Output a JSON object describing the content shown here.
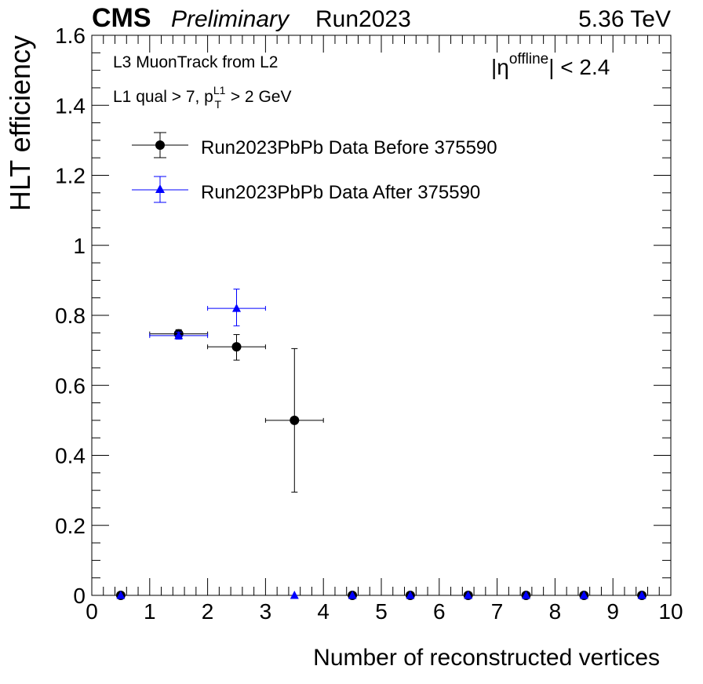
{
  "header": {
    "experiment": "CMS",
    "status": "Preliminary",
    "run": "Run2023",
    "energy": "5.36 TeV"
  },
  "annotations": {
    "line1": "L3 MuonTrack from L2",
    "line2_prefix": "L1 qual > 7, p",
    "line2_sup": "L1",
    "line2_sub": "T",
    "line2_suffix": " > 2 GeV",
    "eta_bar_left": "|",
    "eta_symbol": "η",
    "eta_sup": "offline",
    "eta_suffix": "| < 2.4"
  },
  "chart_data": {
    "type": "scatter",
    "title": "",
    "xlabel": "Number of reconstructed vertices",
    "ylabel": "HLT efficiency",
    "xlim": [
      0,
      10
    ],
    "ylim": [
      0,
      1.6
    ],
    "xticks": [
      "0",
      "1",
      "2",
      "3",
      "4",
      "5",
      "6",
      "7",
      "8",
      "9",
      "10"
    ],
    "yticks": [
      "0",
      "0.2",
      "0.4",
      "0.6",
      "0.8",
      "1",
      "1.2",
      "1.4",
      "1.6"
    ],
    "grid": false,
    "legend_position": "top-left",
    "series": [
      {
        "name": "Run2023PbPb Data Before 375590",
        "marker": "circle",
        "color": "#000000",
        "points": [
          {
            "x": 0.5,
            "xerr": 0.0,
            "y": 0.0,
            "yerr_low": 0.0,
            "yerr_high": 0.0
          },
          {
            "x": 1.5,
            "xerr": 0.5,
            "y": 0.747,
            "yerr_low": 0.012,
            "yerr_high": 0.012
          },
          {
            "x": 2.5,
            "xerr": 0.5,
            "y": 0.71,
            "yerr_low": 0.038,
            "yerr_high": 0.035
          },
          {
            "x": 3.5,
            "xerr": 0.5,
            "y": 0.5,
            "yerr_low": 0.205,
            "yerr_high": 0.205
          },
          {
            "x": 4.5,
            "xerr": 0.0,
            "y": 0.0,
            "yerr_low": 0.0,
            "yerr_high": 0.0
          },
          {
            "x": 5.5,
            "xerr": 0.0,
            "y": 0.0,
            "yerr_low": 0.0,
            "yerr_high": 0.0
          },
          {
            "x": 6.5,
            "xerr": 0.0,
            "y": 0.0,
            "yerr_low": 0.0,
            "yerr_high": 0.0
          },
          {
            "x": 7.5,
            "xerr": 0.0,
            "y": 0.0,
            "yerr_low": 0.0,
            "yerr_high": 0.0
          },
          {
            "x": 8.5,
            "xerr": 0.0,
            "y": 0.0,
            "yerr_low": 0.0,
            "yerr_high": 0.0
          },
          {
            "x": 9.5,
            "xerr": 0.0,
            "y": 0.0,
            "yerr_low": 0.0,
            "yerr_high": 0.0
          }
        ]
      },
      {
        "name": "Run2023PbPb Data After 375590",
        "marker": "triangle",
        "color": "#0000ff",
        "points": [
          {
            "x": 0.5,
            "xerr": 0.0,
            "y": 0.0,
            "yerr_low": 0.0,
            "yerr_high": 0.0
          },
          {
            "x": 1.5,
            "xerr": 0.5,
            "y": 0.742,
            "yerr_low": 0.01,
            "yerr_high": 0.01
          },
          {
            "x": 2.5,
            "xerr": 0.5,
            "y": 0.82,
            "yerr_low": 0.05,
            "yerr_high": 0.055
          },
          {
            "x": 3.5,
            "xerr": 0.0,
            "y": 0.0,
            "yerr_low": 0.0,
            "yerr_high": 0.0
          },
          {
            "x": 4.5,
            "xerr": 0.0,
            "y": 0.0,
            "yerr_low": 0.0,
            "yerr_high": 0.0
          },
          {
            "x": 5.5,
            "xerr": 0.0,
            "y": 0.0,
            "yerr_low": 0.0,
            "yerr_high": 0.0
          },
          {
            "x": 6.5,
            "xerr": 0.0,
            "y": 0.0,
            "yerr_low": 0.0,
            "yerr_high": 0.0
          },
          {
            "x": 7.5,
            "xerr": 0.0,
            "y": 0.0,
            "yerr_low": 0.0,
            "yerr_high": 0.0
          },
          {
            "x": 8.5,
            "xerr": 0.0,
            "y": 0.0,
            "yerr_low": 0.0,
            "yerr_high": 0.0
          },
          {
            "x": 9.5,
            "xerr": 0.0,
            "y": 0.0,
            "yerr_low": 0.0,
            "yerr_high": 0.0
          }
        ]
      }
    ]
  }
}
